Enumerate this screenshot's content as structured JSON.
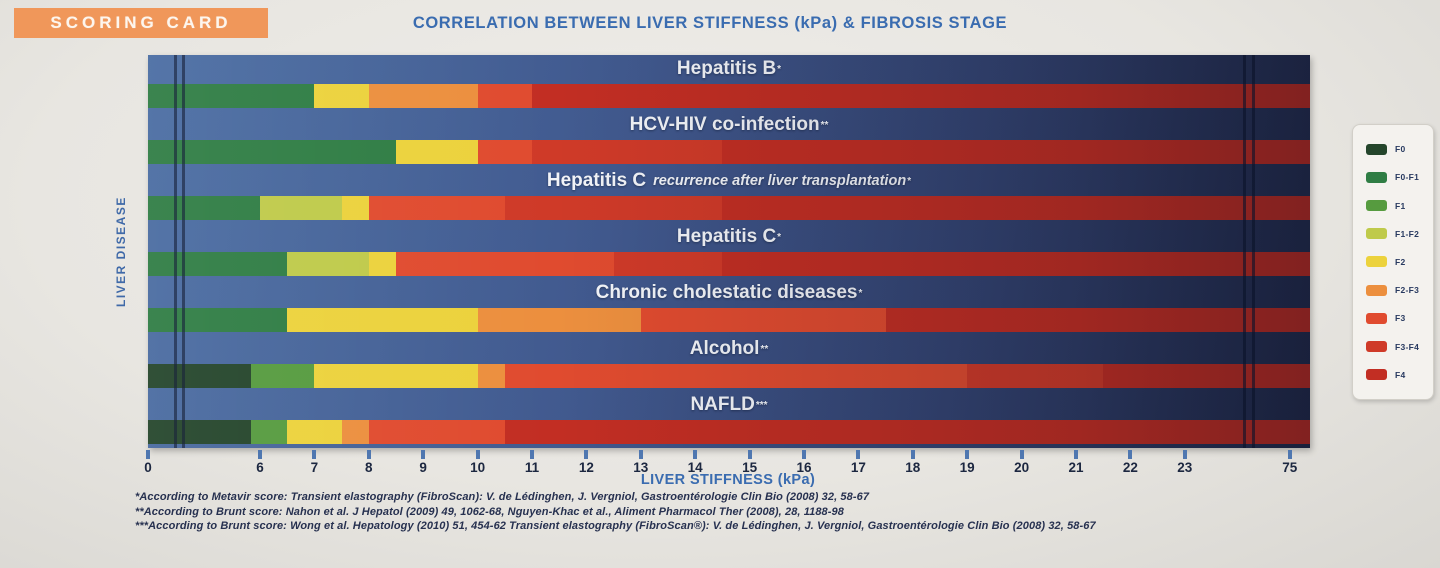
{
  "badge": {
    "label": "SCORING CARD"
  },
  "title": "CORRELATION BETWEEN LIVER STIFFNESS (kPa) & FIBROSIS STAGE",
  "y_axis_label": "LIVER DISEASE",
  "x_axis_label": "LIVER STIFFNESS (kPa)",
  "footnotes": [
    "*According to Metavir score: Transient elastography (FibroScan): V. de Lédinghen, J. Vergniol, Gastroentérologie Clin Bio (2008) 32, 58-67",
    "**According to Brunt score: Nahon et al. J Hepatol (2009) 49, 1062-68, Nguyen-Khac et al., Aliment Pharmacol Ther (2008), 28, 1188-98",
    "***According to Brunt score: Wong et al. Hepatology (2010) 51, 454-62 Transient elastography (FibroScan®): V. de Lédinghen, J. Vergniol, Gastroentérologie Clin Bio (2008) 32, 58-67"
  ],
  "stage_colors": {
    "F0": "#24452b",
    "F0-F1": "#2f7d44",
    "F1": "#569b3f",
    "F1-F2": "#bfca4a",
    "F2": "#ecd23c",
    "F2-F3": "#ec8f3e",
    "F3": "#e04b2f",
    "F3-F4": "#cf3a28",
    "F4": "#c22e23"
  },
  "chart_data": {
    "type": "bar",
    "orientation": "horizontal-stacked",
    "unit": "kPa",
    "x_ticks": [
      0,
      6,
      7,
      8,
      9,
      10,
      11,
      12,
      13,
      14,
      15,
      16,
      17,
      18,
      19,
      20,
      21,
      22,
      23,
      75
    ],
    "x_range": [
      0,
      75
    ],
    "axis_breaks": [
      [
        0,
        6
      ],
      [
        23,
        75
      ]
    ],
    "legend_position": "right",
    "legend_entries": [
      "F0",
      "F0-F1",
      "F1",
      "F1-F2",
      "F2",
      "F2-F3",
      "F3",
      "F3-F4",
      "F4"
    ],
    "rows": [
      {
        "label": "Hepatitis B",
        "label_italic": "",
        "sup": "*",
        "segments": [
          {
            "stage": "F0-F1",
            "from": 0,
            "to": 7
          },
          {
            "stage": "F2",
            "from": 7,
            "to": 8
          },
          {
            "stage": "F2-F3",
            "from": 8,
            "to": 10
          },
          {
            "stage": "F3",
            "from": 10,
            "to": 11
          },
          {
            "stage": "F4",
            "from": 11,
            "to": 75
          }
        ]
      },
      {
        "label": "HCV-HIV co-infection",
        "label_italic": "",
        "sup": "**",
        "segments": [
          {
            "stage": "F0-F1",
            "from": 0,
            "to": 8.5
          },
          {
            "stage": "F2",
            "from": 8.5,
            "to": 10
          },
          {
            "stage": "F3",
            "from": 10,
            "to": 11
          },
          {
            "stage": "F3-F4",
            "from": 11,
            "to": 14.5
          },
          {
            "stage": "F4",
            "from": 14.5,
            "to": 75
          }
        ]
      },
      {
        "label": "Hepatitis C",
        "label_italic": "recurrence after liver transplantation",
        "sup": "*",
        "segments": [
          {
            "stage": "F0-F1",
            "from": 0,
            "to": 6
          },
          {
            "stage": "F1-F2",
            "from": 6,
            "to": 7.5
          },
          {
            "stage": "F2",
            "from": 7.5,
            "to": 8
          },
          {
            "stage": "F3",
            "from": 8,
            "to": 10.5
          },
          {
            "stage": "F3-F4",
            "from": 10.5,
            "to": 14.5
          },
          {
            "stage": "F4",
            "from": 14.5,
            "to": 75
          }
        ]
      },
      {
        "label": "Hepatitis C",
        "label_italic": "",
        "sup": "*",
        "segments": [
          {
            "stage": "F0-F1",
            "from": 0,
            "to": 6.5
          },
          {
            "stage": "F1-F2",
            "from": 6.5,
            "to": 8
          },
          {
            "stage": "F2",
            "from": 8,
            "to": 8.5
          },
          {
            "stage": "F3",
            "from": 8.5,
            "to": 12.5
          },
          {
            "stage": "F3-F4",
            "from": 12.5,
            "to": 14.5
          },
          {
            "stage": "F4",
            "from": 14.5,
            "to": 75
          }
        ]
      },
      {
        "label": "Chronic cholestatic diseases",
        "label_italic": "",
        "sup": "*",
        "segments": [
          {
            "stage": "F0-F1",
            "from": 0,
            "to": 6.5
          },
          {
            "stage": "F2",
            "from": 6.5,
            "to": 10
          },
          {
            "stage": "F2-F3",
            "from": 10,
            "to": 13
          },
          {
            "stage": "F3",
            "from": 13,
            "to": 17.5
          },
          {
            "stage": "F4",
            "from": 17.5,
            "to": 75
          }
        ]
      },
      {
        "label": "Alcohol",
        "label_italic": "",
        "sup": "**",
        "segments": [
          {
            "stage": "F0",
            "from": 0,
            "to": 5.5
          },
          {
            "stage": "F1",
            "from": 5.5,
            "to": 7
          },
          {
            "stage": "F2",
            "from": 7,
            "to": 10
          },
          {
            "stage": "F2-F3",
            "from": 10,
            "to": 10.5
          },
          {
            "stage": "F3",
            "from": 10.5,
            "to": 19
          },
          {
            "stage": "F3-F4",
            "from": 19,
            "to": 21.5
          },
          {
            "stage": "F4",
            "from": 21.5,
            "to": 75
          }
        ]
      },
      {
        "label": "NAFLD",
        "label_italic": "",
        "sup": "***",
        "segments": [
          {
            "stage": "F0",
            "from": 0,
            "to": 5.5
          },
          {
            "stage": "F1",
            "from": 5.5,
            "to": 6.5
          },
          {
            "stage": "F2",
            "from": 6.5,
            "to": 7.5
          },
          {
            "stage": "F2-F3",
            "from": 7.5,
            "to": 8
          },
          {
            "stage": "F3",
            "from": 8,
            "to": 10.5
          },
          {
            "stage": "F4",
            "from": 10.5,
            "to": 75
          }
        ]
      }
    ]
  }
}
